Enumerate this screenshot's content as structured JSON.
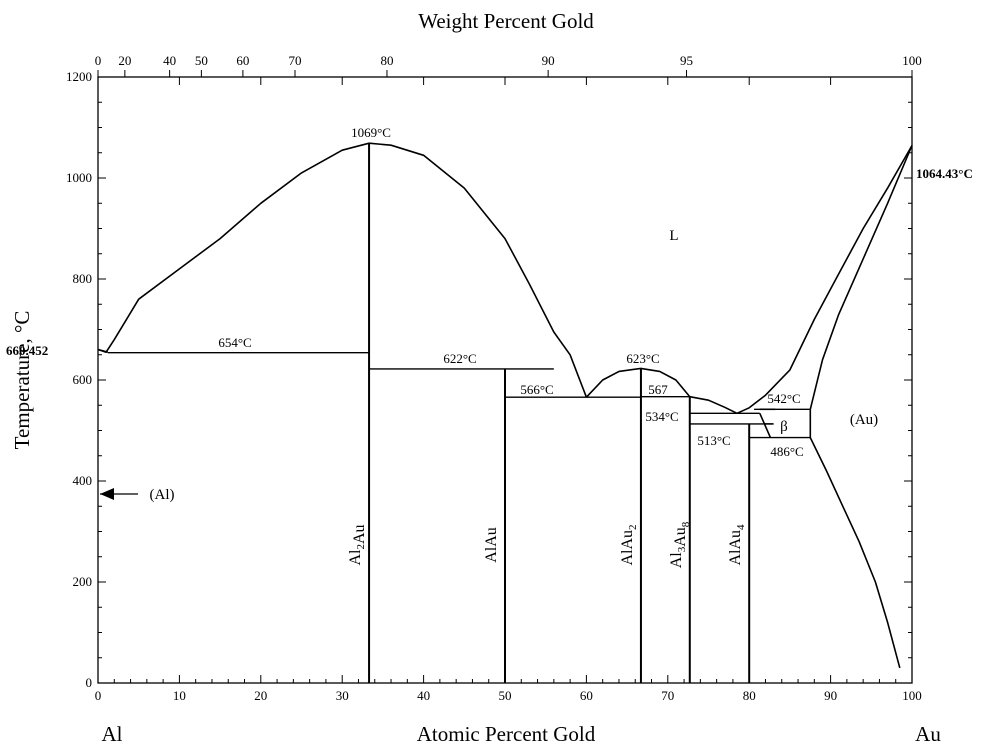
{
  "chart_data": {
    "type": "line",
    "title": "",
    "xlabel_bottom": "Atomic Percent Gold",
    "xlabel_top": "Weight Percent Gold",
    "ylabel": "Temperature, °C",
    "xlim": [
      0,
      100
    ],
    "ylim": [
      0,
      1200
    ],
    "grid": false,
    "legend": "none",
    "x_ticks": [
      "0",
      "10",
      "20",
      "30",
      "40",
      "50",
      "60",
      "70",
      "80",
      "90",
      "100"
    ],
    "y_ticks": [
      "0",
      "200",
      "400",
      "600",
      "800",
      "1000",
      "1200"
    ],
    "top_ticks": [
      {
        "label": "0",
        "at": 0
      },
      {
        "label": "20",
        "at": 3.3
      },
      {
        "label": "40",
        "at": 8.8
      },
      {
        "label": "50",
        "at": 12.7
      },
      {
        "label": "60",
        "at": 17.8
      },
      {
        "label": "70",
        "at": 24.2
      },
      {
        "label": "80",
        "at": 35.5
      },
      {
        "label": "90",
        "at": 55.3
      },
      {
        "label": "95",
        "at": 72.3
      },
      {
        "label": "100",
        "at": 100
      }
    ],
    "end_labels": {
      "left": "Al",
      "right": "Au"
    },
    "phase_labels": [
      "L",
      "β",
      "(Au)",
      "(Al)"
    ],
    "compounds": [
      {
        "name": "Al",
        "sub1": "2",
        "mid": "Au",
        "sub2": "",
        "x": 33.3
      },
      {
        "name": "AlAu",
        "sub1": "",
        "mid": "",
        "sub2": "",
        "x": 50.0
      },
      {
        "name": "AlAu",
        "sub1": "",
        "mid": "",
        "sub2": "2",
        "x": 66.7
      },
      {
        "name": "Al",
        "sub1": "3",
        "mid": "Au",
        "sub2": "8",
        "x": 72.7
      },
      {
        "name": "AlAu",
        "sub1": "",
        "mid": "",
        "sub2": "4",
        "x": 80.0
      }
    ],
    "annotations": {
      "al_melt": "660.452",
      "au_melt": "1064.43°C",
      "t1069": "1069°C",
      "t654": "654°C",
      "t622": "622°C",
      "t623": "623°C",
      "t566": "566°C",
      "t567": "567",
      "t534": "534°C",
      "t513": "513°C",
      "t542": "542°C",
      "t486": "486°C"
    },
    "curves": [
      {
        "name": "liquidus-al-rich",
        "points": [
          [
            0,
            660.45
          ],
          [
            1,
            655
          ],
          [
            2,
            680
          ],
          [
            5,
            760
          ],
          [
            10,
            820
          ],
          [
            15,
            880
          ],
          [
            20,
            950
          ],
          [
            25,
            1010
          ],
          [
            30,
            1055
          ],
          [
            33.3,
            1069
          ]
        ]
      },
      {
        "name": "liquidus-al2au-right",
        "points": [
          [
            33.3,
            1069
          ],
          [
            36,
            1065
          ],
          [
            40,
            1045
          ],
          [
            45,
            980
          ],
          [
            50,
            880
          ],
          [
            53,
            790
          ],
          [
            56,
            695
          ],
          [
            58,
            650
          ],
          [
            60,
            566
          ]
        ]
      },
      {
        "name": "liquidus-alau2-dome",
        "points": [
          [
            60,
            566
          ],
          [
            62,
            600
          ],
          [
            64,
            617
          ],
          [
            66.7,
            623
          ],
          [
            69,
            617
          ],
          [
            71,
            600
          ],
          [
            72.7,
            567
          ]
        ]
      },
      {
        "name": "liquidus-al3au8-right",
        "points": [
          [
            72.7,
            567
          ],
          [
            75,
            560
          ],
          [
            77,
            546
          ],
          [
            78.5,
            534
          ]
        ]
      },
      {
        "name": "liquidus-au-rich",
        "points": [
          [
            78.5,
            534
          ],
          [
            80,
            545
          ],
          [
            82,
            570
          ],
          [
            85,
            620
          ],
          [
            88,
            720
          ],
          [
            91,
            810
          ],
          [
            94,
            900
          ],
          [
            97,
            980
          ],
          [
            100,
            1064.43
          ]
        ]
      },
      {
        "name": "solidus-au",
        "points": [
          [
            87.5,
            542
          ],
          [
            89,
            640
          ],
          [
            91,
            730
          ],
          [
            94,
            840
          ],
          [
            97,
            950
          ],
          [
            100,
            1064.43
          ]
        ]
      },
      {
        "name": "solvus-au",
        "points": [
          [
            87.5,
            542
          ],
          [
            87.5,
            486
          ],
          [
            89.5,
            420
          ],
          [
            91.5,
            350
          ],
          [
            93.5,
            280
          ],
          [
            95.5,
            200
          ],
          [
            97,
            120
          ],
          [
            98.5,
            30
          ]
        ]
      },
      {
        "name": "al-solidus",
        "points": [
          [
            0,
            660.45
          ],
          [
            1.2,
            655
          ]
        ]
      },
      {
        "name": "beta-left",
        "points": [
          [
            81.3,
            534
          ],
          [
            82.6,
            486
          ]
        ]
      },
      {
        "name": "beta-top",
        "points": [
          [
            81.3,
            542
          ],
          [
            83.2,
            542
          ]
        ]
      },
      {
        "name": "beta-mid",
        "points": [
          [
            81.8,
            513
          ],
          [
            83,
            513
          ]
        ]
      }
    ],
    "horizontals": [
      {
        "y": 654,
        "x1": 1.2,
        "x2": 33.3
      },
      {
        "y": 622,
        "x1": 33.3,
        "x2": 56
      },
      {
        "y": 566,
        "x1": 50,
        "x2": 66.7
      },
      {
        "y": 567,
        "x1": 66.7,
        "x2": 72.7
      },
      {
        "y": 534,
        "x1": 72.7,
        "x2": 81.3
      },
      {
        "y": 513,
        "x1": 72.7,
        "x2": 81.8
      },
      {
        "y": 542,
        "x1": 80.6,
        "x2": 87.5
      },
      {
        "y": 486,
        "x1": 80,
        "x2": 87.5
      }
    ],
    "verticals": [
      {
        "x": 33.3,
        "y1": 0,
        "y2": 1069
      },
      {
        "x": 50.0,
        "y1": 0,
        "y2": 622
      },
      {
        "x": 66.7,
        "y1": 0,
        "y2": 623
      },
      {
        "x": 72.7,
        "y1": 0,
        "y2": 567
      },
      {
        "x": 80.0,
        "y1": 0,
        "y2": 513
      }
    ]
  }
}
